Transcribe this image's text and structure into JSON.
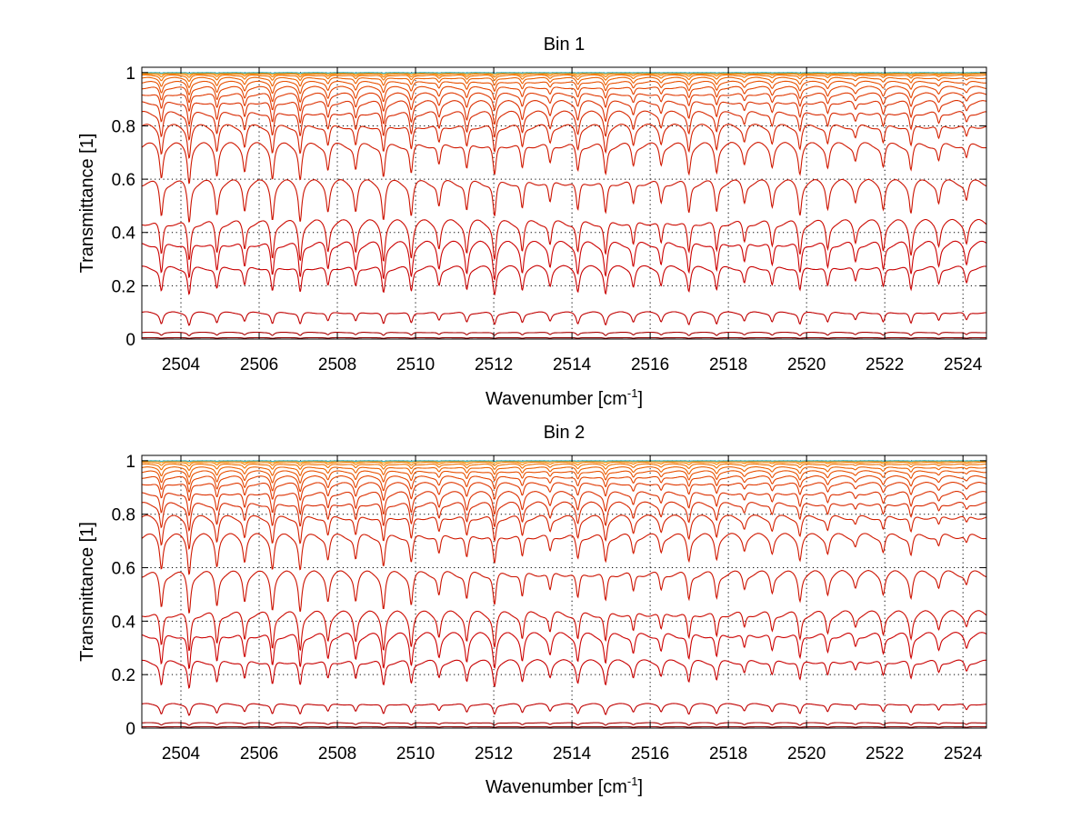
{
  "chart_data": [
    {
      "type": "line",
      "title": "Bin 1",
      "xlabel": "Wavenumber [cm",
      "xlabel_sup": "-1",
      "xlabel_suffix": "]",
      "ylabel": "Transmittance [1]",
      "xlim": [
        2503,
        2524.6
      ],
      "ylim": [
        0,
        1.02
      ],
      "grid": true,
      "x_ticks": [
        2504,
        2506,
        2508,
        2510,
        2512,
        2514,
        2516,
        2518,
        2520,
        2522,
        2524
      ],
      "x_tick_labels": [
        "2504",
        "2506",
        "2508",
        "2510",
        "2512",
        "2514",
        "2516",
        "2518",
        "2520",
        "2522",
        "2524"
      ],
      "y_ticks": [
        0,
        0.2,
        0.4,
        0.6,
        0.8,
        1
      ],
      "y_tick_labels": [
        "0",
        "0.2",
        "0.4",
        "0.6",
        "0.8",
        "1"
      ],
      "line_spacing_cm1": 0.71,
      "line_offset_cm1": 2503.5,
      "line_width_cm1": 0.05,
      "series": [
        {
          "color": "#8b0000",
          "base": 0.005,
          "depth": 0.002,
          "decay": 0.0
        },
        {
          "color": "#a80000",
          "base": 0.025,
          "depth": 0.01,
          "decay": 0.0
        },
        {
          "color": "#c00000",
          "base": 0.1,
          "depth": 0.04,
          "decay": 0.1
        },
        {
          "color": "#c80000",
          "base": 0.27,
          "depth": 0.09,
          "decay": 0.2
        },
        {
          "color": "#cc0000",
          "base": 0.36,
          "depth": 0.12,
          "decay": 0.25
        },
        {
          "color": "#cc0a00",
          "base": 0.44,
          "depth": 0.13,
          "decay": 0.3
        },
        {
          "color": "#cc1200",
          "base": 0.59,
          "depth": 0.13,
          "decay": 0.35
        },
        {
          "color": "#d01800",
          "base": 0.73,
          "depth": 0.12,
          "decay": 0.4
        },
        {
          "color": "#d42000",
          "base": 0.8,
          "depth": 0.1,
          "decay": 0.4
        },
        {
          "color": "#d82800",
          "base": 0.85,
          "depth": 0.09,
          "decay": 0.45
        },
        {
          "color": "#dc3000",
          "base": 0.89,
          "depth": 0.08,
          "decay": 0.5
        },
        {
          "color": "#e03800",
          "base": 0.92,
          "depth": 0.06,
          "decay": 0.5
        },
        {
          "color": "#e44400",
          "base": 0.945,
          "depth": 0.05,
          "decay": 0.5
        },
        {
          "color": "#e85000",
          "base": 0.965,
          "depth": 0.04,
          "decay": 0.55
        },
        {
          "color": "#ec6000",
          "base": 0.98,
          "depth": 0.03,
          "decay": 0.55
        },
        {
          "color": "#f07000",
          "base": 0.99,
          "depth": 0.02,
          "decay": 0.6
        },
        {
          "color": "#f48000",
          "base": 0.995,
          "depth": 0.012,
          "decay": 0.6
        },
        {
          "color": "#f89000",
          "base": 0.998,
          "depth": 0.006,
          "decay": 0.6
        },
        {
          "color": "#2ab0c0",
          "base": 1.0,
          "depth": 0.002,
          "decay": 0.6
        }
      ]
    },
    {
      "type": "line",
      "title": "Bin 2",
      "xlabel": "Wavenumber [cm",
      "xlabel_sup": "-1",
      "xlabel_suffix": "]",
      "ylabel": "Transmittance [1]",
      "xlim": [
        2503,
        2524.6
      ],
      "ylim": [
        0,
        1.02
      ],
      "grid": true,
      "x_ticks": [
        2504,
        2506,
        2508,
        2510,
        2512,
        2514,
        2516,
        2518,
        2520,
        2522,
        2524
      ],
      "x_tick_labels": [
        "2504",
        "2506",
        "2508",
        "2510",
        "2512",
        "2514",
        "2516",
        "2518",
        "2520",
        "2522",
        "2524"
      ],
      "y_ticks": [
        0,
        0.2,
        0.4,
        0.6,
        0.8,
        1
      ],
      "y_tick_labels": [
        "0",
        "0.2",
        "0.4",
        "0.6",
        "0.8",
        "1"
      ],
      "line_spacing_cm1": 0.71,
      "line_offset_cm1": 2503.5,
      "line_width_cm1": 0.05,
      "series": [
        {
          "color": "#8b0000",
          "base": 0.005,
          "depth": 0.002,
          "decay": 0.0
        },
        {
          "color": "#a80000",
          "base": 0.02,
          "depth": 0.008,
          "decay": 0.0
        },
        {
          "color": "#c00000",
          "base": 0.09,
          "depth": 0.035,
          "decay": 0.2
        },
        {
          "color": "#c80000",
          "base": 0.25,
          "depth": 0.09,
          "decay": 0.45
        },
        {
          "color": "#cc0000",
          "base": 0.35,
          "depth": 0.12,
          "decay": 0.5
        },
        {
          "color": "#cc0a00",
          "base": 0.43,
          "depth": 0.13,
          "decay": 0.55
        },
        {
          "color": "#cc1200",
          "base": 0.58,
          "depth": 0.13,
          "decay": 0.55
        },
        {
          "color": "#d01800",
          "base": 0.72,
          "depth": 0.12,
          "decay": 0.6
        },
        {
          "color": "#d42000",
          "base": 0.79,
          "depth": 0.1,
          "decay": 0.6
        },
        {
          "color": "#d82800",
          "base": 0.84,
          "depth": 0.09,
          "decay": 0.6
        },
        {
          "color": "#dc3000",
          "base": 0.88,
          "depth": 0.08,
          "decay": 0.6
        },
        {
          "color": "#e03800",
          "base": 0.915,
          "depth": 0.06,
          "decay": 0.6
        },
        {
          "color": "#e44400",
          "base": 0.94,
          "depth": 0.05,
          "decay": 0.6
        },
        {
          "color": "#e85000",
          "base": 0.96,
          "depth": 0.04,
          "decay": 0.6
        },
        {
          "color": "#ec6000",
          "base": 0.975,
          "depth": 0.03,
          "decay": 0.6
        },
        {
          "color": "#f07000",
          "base": 0.987,
          "depth": 0.02,
          "decay": 0.6
        },
        {
          "color": "#f48000",
          "base": 0.994,
          "depth": 0.012,
          "decay": 0.6
        },
        {
          "color": "#f89000",
          "base": 0.998,
          "depth": 0.006,
          "decay": 0.6
        },
        {
          "color": "#2ab0c0",
          "base": 1.0,
          "depth": 0.002,
          "decay": 0.6
        }
      ]
    }
  ]
}
